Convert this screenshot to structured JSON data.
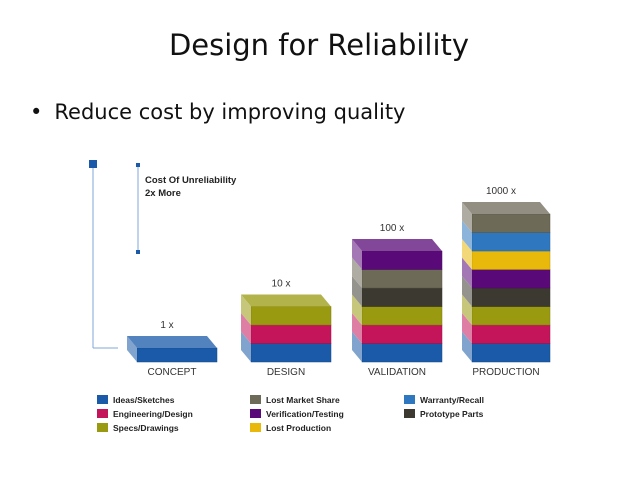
{
  "slide": {
    "title": "Design for Reliability",
    "bullet": "Reduce cost by improving quality"
  },
  "diagram": {
    "cost_note_line1": "Cost Of Unreliability",
    "cost_note_line2": "2x More",
    "stages": [
      {
        "name": "CONCEPT",
        "multiplier": "1 x",
        "layers": [
          "ideas"
        ]
      },
      {
        "name": "DESIGN",
        "multiplier": "10 x",
        "layers": [
          "ideas",
          "engineering",
          "specs"
        ]
      },
      {
        "name": "VALIDATION",
        "multiplier": "100 x",
        "layers": [
          "ideas",
          "engineering",
          "specs",
          "prototype",
          "lostshare",
          "verification"
        ]
      },
      {
        "name": "PRODUCTION",
        "multiplier": "1000 x",
        "layers": [
          "ideas",
          "engineering",
          "specs",
          "prototype",
          "verification",
          "lostprod",
          "warranty",
          "lostshare"
        ]
      }
    ],
    "legend": [
      {
        "key": "ideas",
        "label": "Ideas/Sketches",
        "color": "#1a5aa8"
      },
      {
        "key": "engineering",
        "label": "Engineering/Design",
        "color": "#c4145a"
      },
      {
        "key": "specs",
        "label": "Specs/Drawings",
        "color": "#9a9a10"
      },
      {
        "key": "lostshare",
        "label": "Lost Market Share",
        "color": "#6e6a58"
      },
      {
        "key": "verification",
        "label": "Verification/Testing",
        "color": "#5a0a78"
      },
      {
        "key": "lostprod",
        "label": "Lost Production",
        "color": "#e8b80a"
      },
      {
        "key": "warranty",
        "label": "Warranty/Recall",
        "color": "#2f78c0"
      },
      {
        "key": "prototype",
        "label": "Prototype Parts",
        "color": "#3c3a30"
      }
    ]
  }
}
